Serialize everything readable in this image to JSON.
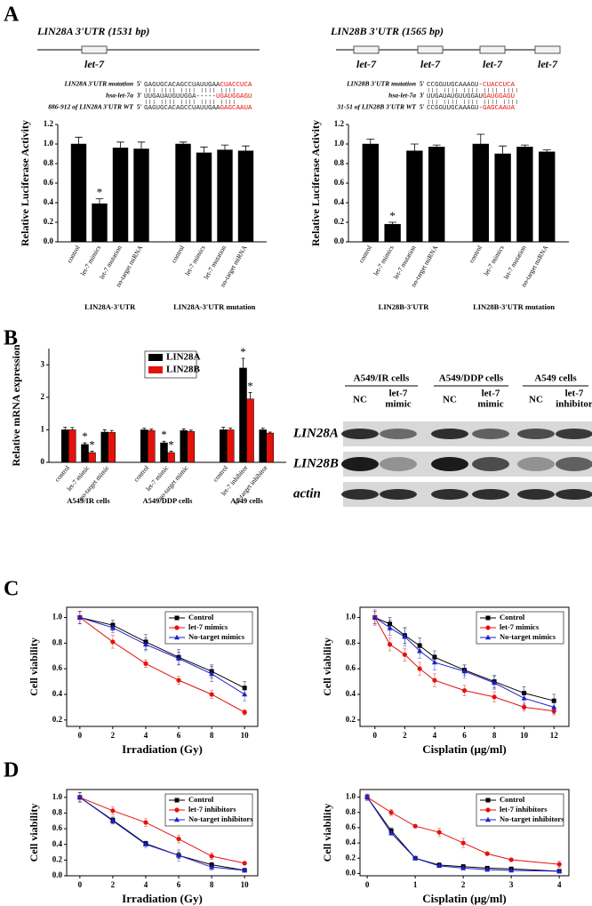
{
  "panel_labels": [
    "A",
    "B",
    "C",
    "D"
  ],
  "panel_a": {
    "genes": [
      {
        "title": "LIN28A 3'UTR (1531 bp)",
        "sites": [
          "let-7"
        ],
        "alignment": [
          {
            "label": "LIN28A 3'UTR mutation",
            "end": "5'",
            "seq": "GAGUGCACAGCCUAUUGAA",
            "seq_red": "CUACCUCA"
          },
          {
            "label": "hsa-let-7a",
            "end": "3'",
            "seq": "UUGAUAUGUUGGA-----",
            "seq_red": "UGAUGGAGU"
          },
          {
            "label": "886-912 of LIN28A 3'UTR WT",
            "end": "5'",
            "seq": "GAGUGCACAGCCUAUUGAA",
            "seq_red": "GAGCAAUA"
          }
        ]
      },
      {
        "title": "LIN28B 3'UTR (1565 bp)",
        "sites": [
          "let-7",
          "let-7",
          "let-7",
          "let-7"
        ],
        "alignment": [
          {
            "label": "LIN28B 3'UTR mutation",
            "end": "5'",
            "seq": "CCGGUUGCAAAGU-",
            "seq_red": "CUACCUCA"
          },
          {
            "label": "hsa-let-7a",
            "end": "3'",
            "seq": "UUGAUAUGUUGGAU",
            "seq_red": "GAUGGAGU"
          },
          {
            "label": "31-51 of LIN28B 3'UTR WT",
            "end": "5'",
            "seq": "CCGGUUGCAAAGU-",
            "seq_red": "GAGCAAUA"
          }
        ]
      }
    ]
  },
  "panel_b_blot": {
    "groups": [
      "A549/IR cells",
      "A549/DDP cells",
      "A549 cells"
    ],
    "lanes": [
      [
        "NC"
      ],
      [
        "let-7",
        "mimic"
      ],
      [
        "NC"
      ],
      [
        "let-7",
        "mimic"
      ],
      [
        "NC"
      ],
      [
        "let-7",
        "inhibitor"
      ]
    ],
    "rows": [
      "LIN28A",
      "LIN28B",
      "actin"
    ]
  },
  "chart_data": [
    {
      "type": "bar",
      "ylabel": "Relative Luciferase Activity",
      "categories": [
        "control",
        "let-7 mimics",
        "let-7 mutation",
        "no-target miRNA",
        "control",
        "let-7 mimics",
        "let-7 mutation",
        "no-target miRNA"
      ],
      "group_labels": [
        "LIN28A-3'UTR",
        "LIN28A-3'UTR mutation"
      ],
      "series": [
        {
          "color": "#000000",
          "values": [
            1.0,
            0.39,
            0.96,
            0.95,
            1.0,
            0.91,
            0.94,
            0.93
          ],
          "errors": [
            0.07,
            0.05,
            0.06,
            0.07,
            0.02,
            0.06,
            0.05,
            0.05
          ],
          "marks": [
            null,
            "*",
            null,
            null,
            null,
            null,
            null,
            null
          ]
        }
      ],
      "ylim": [
        0,
        1.2
      ],
      "yticks": [
        {
          "value": 0,
          "label": "0.0"
        },
        {
          "value": 0.2,
          "label": "0.2"
        },
        {
          "value": 0.4,
          "label": "0.4"
        },
        {
          "value": 0.6,
          "label": "0.6"
        },
        {
          "value": 0.8,
          "label": "0.8"
        },
        {
          "value": 1.0,
          "label": "1.0"
        },
        {
          "value": 1.2,
          "label": "1.2"
        }
      ]
    },
    {
      "type": "bar",
      "ylabel": "Relative Luciferase Activity",
      "categories": [
        "control",
        "let-7 mimics",
        "let-7 mutation",
        "no-target miRNA",
        "control",
        "let-7 mimics",
        "let-7 mutation",
        "no-target miRNA"
      ],
      "group_labels": [
        "LIN28B-3'UTR",
        "LIN28B-3'UTR mutation"
      ],
      "series": [
        {
          "color": "#000000",
          "values": [
            1.0,
            0.18,
            0.93,
            0.97,
            1.0,
            0.9,
            0.97,
            0.92
          ],
          "errors": [
            0.05,
            0.02,
            0.07,
            0.02,
            0.1,
            0.08,
            0.02,
            0.02
          ],
          "marks": [
            null,
            "*",
            null,
            null,
            null,
            null,
            null,
            null
          ]
        }
      ],
      "ylim": [
        0,
        1.2
      ],
      "yticks": [
        {
          "value": 0,
          "label": "0.0"
        },
        {
          "value": 0.2,
          "label": "0.2"
        },
        {
          "value": 0.4,
          "label": "0.4"
        },
        {
          "value": 0.6,
          "label": "0.6"
        },
        {
          "value": 0.8,
          "label": "0.8"
        },
        {
          "value": 1.0,
          "label": "1.0"
        },
        {
          "value": 1.2,
          "label": "1.2"
        }
      ]
    },
    {
      "type": "bar",
      "ylabel": "Relative mRNA expression",
      "categories": [
        "control",
        "let-7 mimic",
        "no-target mimic",
        "control",
        "let-7 mimic",
        "no-target mimic",
        "control",
        "let-7 inhibitor",
        "no-target inhibitor"
      ],
      "group_labels": [
        "A549/IR cells",
        "A549/DDP cells",
        "A549 cells"
      ],
      "series": [
        {
          "name": "LIN28A",
          "color": "#000000",
          "values": [
            1.0,
            0.55,
            0.93,
            1.0,
            0.6,
            0.98,
            1.0,
            2.9,
            1.0
          ],
          "errors": [
            0.08,
            0.05,
            0.07,
            0.05,
            0.05,
            0.05,
            0.08,
            0.3,
            0.05
          ],
          "marks": [
            null,
            "*",
            null,
            null,
            "*",
            null,
            null,
            "*",
            null
          ]
        },
        {
          "name": "LIN28B",
          "color": "#e3120b",
          "values": [
            1.0,
            0.3,
            0.92,
            0.98,
            0.3,
            0.95,
            1.0,
            1.95,
            0.9
          ],
          "errors": [
            0.07,
            0.04,
            0.06,
            0.04,
            0.04,
            0.04,
            0.06,
            0.2,
            0.03
          ],
          "marks": [
            null,
            "*",
            null,
            null,
            "*",
            null,
            null,
            "*",
            null
          ]
        }
      ],
      "legend": "top",
      "ylim": [
        0,
        3.5
      ],
      "yticks": [
        0,
        1,
        2,
        3
      ]
    },
    {
      "type": "line",
      "xlabel": "Irradiation (Gy)",
      "ylabel": "Cell viability",
      "x": [
        0,
        2,
        4,
        6,
        8,
        10
      ],
      "xlim": [
        -0.8,
        10.8
      ],
      "xticks": [
        0,
        2,
        4,
        6,
        8,
        10
      ],
      "ylim": [
        0.15,
        1.08
      ],
      "yticks": [
        0.2,
        0.4,
        0.6,
        0.8,
        {
          "value": 1.0,
          "label": "1.0"
        }
      ],
      "legend": "upper right",
      "series": [
        {
          "name": "Control",
          "color": "#000000",
          "marker": "square",
          "values": [
            1.0,
            0.94,
            0.81,
            0.69,
            0.58,
            0.45
          ],
          "errors": [
            0.05,
            0.04,
            0.06,
            0.06,
            0.05,
            0.05
          ]
        },
        {
          "name": "let-7 mimics",
          "color": "#e3120b",
          "marker": "circle",
          "values": [
            1.0,
            0.81,
            0.64,
            0.51,
            0.4,
            0.26
          ],
          "errors": [
            0.05,
            0.05,
            0.03,
            0.03,
            0.03,
            0.02
          ]
        },
        {
          "name": "No-target mimics",
          "color": "#1f1fc8",
          "marker": "triangle",
          "values": [
            1.0,
            0.92,
            0.79,
            0.68,
            0.56,
            0.4
          ],
          "errors": [
            0.05,
            0.04,
            0.05,
            0.05,
            0.06,
            0.05
          ]
        }
      ]
    },
    {
      "type": "line",
      "xlabel": "Cisplatin (μg/ml)",
      "ylabel": "Cell viability",
      "x": [
        0,
        1,
        2,
        3,
        4,
        6,
        8,
        10,
        12
      ],
      "xlim": [
        -1,
        13
      ],
      "xticks": [
        0,
        2,
        4,
        6,
        8,
        10,
        12
      ],
      "ylim": [
        0.15,
        1.08
      ],
      "yticks": [
        0.2,
        0.4,
        0.6,
        0.8,
        {
          "value": 1.0,
          "label": "1.0"
        }
      ],
      "legend": "upper right",
      "series": [
        {
          "name": "Control",
          "color": "#000000",
          "marker": "square",
          "values": [
            1.0,
            0.95,
            0.86,
            0.78,
            0.69,
            0.59,
            0.5,
            0.41,
            0.35
          ],
          "errors": [
            0.05,
            0.05,
            0.06,
            0.06,
            0.05,
            0.04,
            0.05,
            0.05,
            0.05
          ]
        },
        {
          "name": "let-7 mimics",
          "color": "#e3120b",
          "marker": "circle",
          "values": [
            1.0,
            0.79,
            0.71,
            0.6,
            0.51,
            0.43,
            0.38,
            0.3,
            0.27
          ],
          "errors": [
            0.05,
            0.05,
            0.05,
            0.05,
            0.05,
            0.04,
            0.04,
            0.03,
            0.03
          ]
        },
        {
          "name": "No-target mimics",
          "color": "#1f1fc8",
          "marker": "triangle",
          "values": [
            1.0,
            0.92,
            0.85,
            0.74,
            0.65,
            0.58,
            0.49,
            0.37,
            0.3
          ],
          "errors": [
            0.06,
            0.06,
            0.07,
            0.06,
            0.06,
            0.05,
            0.05,
            0.05,
            0.05
          ]
        }
      ]
    },
    {
      "type": "line",
      "xlabel": "Irradiation (Gy)",
      "ylabel": "Cell viability",
      "x": [
        0,
        2,
        4,
        6,
        8,
        10
      ],
      "xlim": [
        -0.8,
        10.8
      ],
      "xticks": [
        0,
        2,
        4,
        6,
        8,
        10
      ],
      "ylim": [
        0,
        1.1
      ],
      "yticks": [
        {
          "value": 0,
          "label": "0.0"
        },
        0.2,
        0.4,
        0.6,
        0.8,
        {
          "value": 1.0,
          "label": "1.0"
        }
      ],
      "legend": "upper right",
      "series": [
        {
          "name": "Control",
          "color": "#000000",
          "marker": "square",
          "values": [
            1.0,
            0.71,
            0.41,
            0.26,
            0.14,
            0.07
          ],
          "errors": [
            0.06,
            0.04,
            0.03,
            0.04,
            0.03,
            0.01
          ]
        },
        {
          "name": "let-7 inhibitors",
          "color": "#e3120b",
          "marker": "circle",
          "values": [
            1.0,
            0.83,
            0.68,
            0.47,
            0.25,
            0.16
          ],
          "errors": [
            0.06,
            0.05,
            0.05,
            0.05,
            0.04,
            0.01
          ]
        },
        {
          "name": "No-target inhibitors",
          "color": "#1f1fc8",
          "marker": "triangle",
          "values": [
            1.0,
            0.7,
            0.4,
            0.26,
            0.11,
            0.07
          ],
          "errors": [
            0.06,
            0.04,
            0.04,
            0.07,
            0.04,
            0.01
          ]
        }
      ]
    },
    {
      "type": "line",
      "xlabel": "Cisplatin (μg/ml)",
      "ylabel": "Cell viability",
      "x": [
        0,
        0.5,
        1,
        1.5,
        2,
        2.5,
        3,
        4
      ],
      "xlim": [
        -0.15,
        4.2
      ],
      "xticks": [
        0,
        1,
        2,
        3,
        4
      ],
      "ylim": [
        -0.03,
        1.1
      ],
      "yticks": [
        {
          "value": 0,
          "label": "0.0"
        },
        0.2,
        0.4,
        0.6,
        0.8,
        {
          "value": 1.0,
          "label": "1.0"
        }
      ],
      "legend": "upper right",
      "series": [
        {
          "name": "Control",
          "color": "#000000",
          "marker": "square",
          "values": [
            1.0,
            0.56,
            0.2,
            0.11,
            0.09,
            0.07,
            0.06,
            0.03
          ],
          "errors": [
            0.04,
            0.04,
            0.02,
            0.03,
            0.03,
            0.02,
            0.02,
            0.01
          ]
        },
        {
          "name": "let-7 inhibitors",
          "color": "#e3120b",
          "marker": "circle",
          "values": [
            1.0,
            0.8,
            0.62,
            0.54,
            0.4,
            0.26,
            0.18,
            0.12
          ],
          "errors": [
            0.04,
            0.04,
            0.02,
            0.05,
            0.06,
            0.02,
            0.01,
            0.04
          ]
        },
        {
          "name": "No-target inhibitors",
          "color": "#1f1fc8",
          "marker": "triangle",
          "values": [
            1.0,
            0.53,
            0.2,
            0.1,
            0.07,
            0.05,
            0.04,
            0.03
          ],
          "errors": [
            0.04,
            0.03,
            0.02,
            0.02,
            0.02,
            0.02,
            0.01,
            0.01
          ]
        }
      ]
    }
  ]
}
